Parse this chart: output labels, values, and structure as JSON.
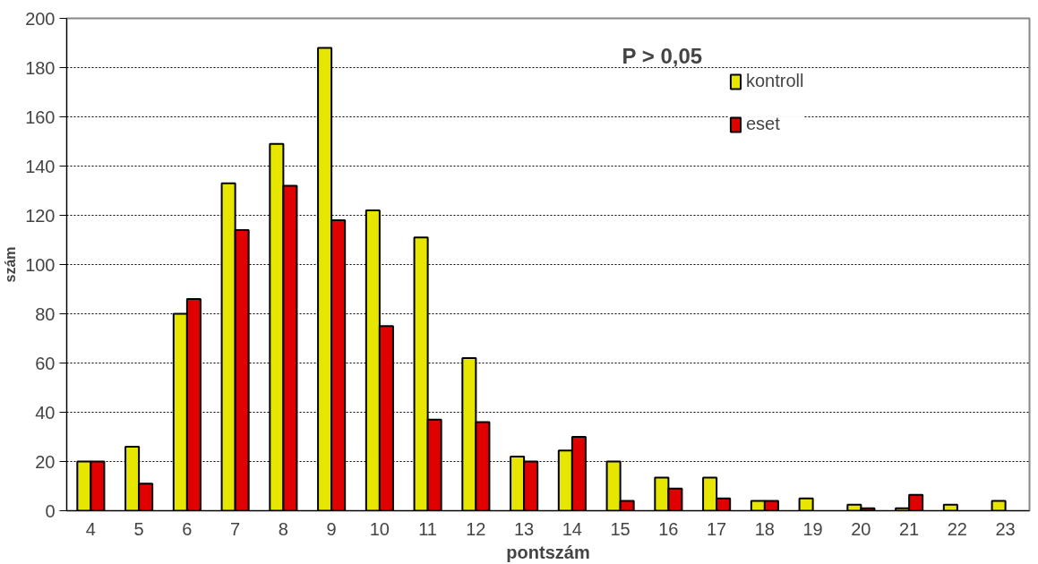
{
  "chart_data": {
    "type": "bar",
    "xlabel": "pontszám",
    "ylabel": "szám",
    "categories": [
      "4",
      "5",
      "6",
      "7",
      "8",
      "9",
      "10",
      "11",
      "12",
      "13",
      "14",
      "15",
      "16",
      "17",
      "18",
      "19",
      "20",
      "21",
      "22",
      "23"
    ],
    "series": [
      {
        "name": "kontroll",
        "color": "#e6e600",
        "values": [
          20,
          26,
          80,
          133,
          149,
          188,
          122,
          111,
          62,
          22,
          24.5,
          20,
          13.5,
          13.5,
          4,
          5,
          2.5,
          1,
          2.5,
          4
        ]
      },
      {
        "name": "eset",
        "color": "#e00000",
        "values": [
          20,
          11,
          86,
          114,
          132,
          118,
          75,
          37,
          36,
          20,
          30,
          4,
          9,
          5,
          4,
          0,
          1,
          6.5,
          0,
          0
        ]
      }
    ],
    "ylim": [
      0,
      200
    ],
    "yticks": [
      0,
      20,
      40,
      60,
      80,
      100,
      120,
      140,
      160,
      180,
      200
    ],
    "grid": "y",
    "legend": "top right",
    "annotations": [
      "P  > 0,05"
    ]
  }
}
